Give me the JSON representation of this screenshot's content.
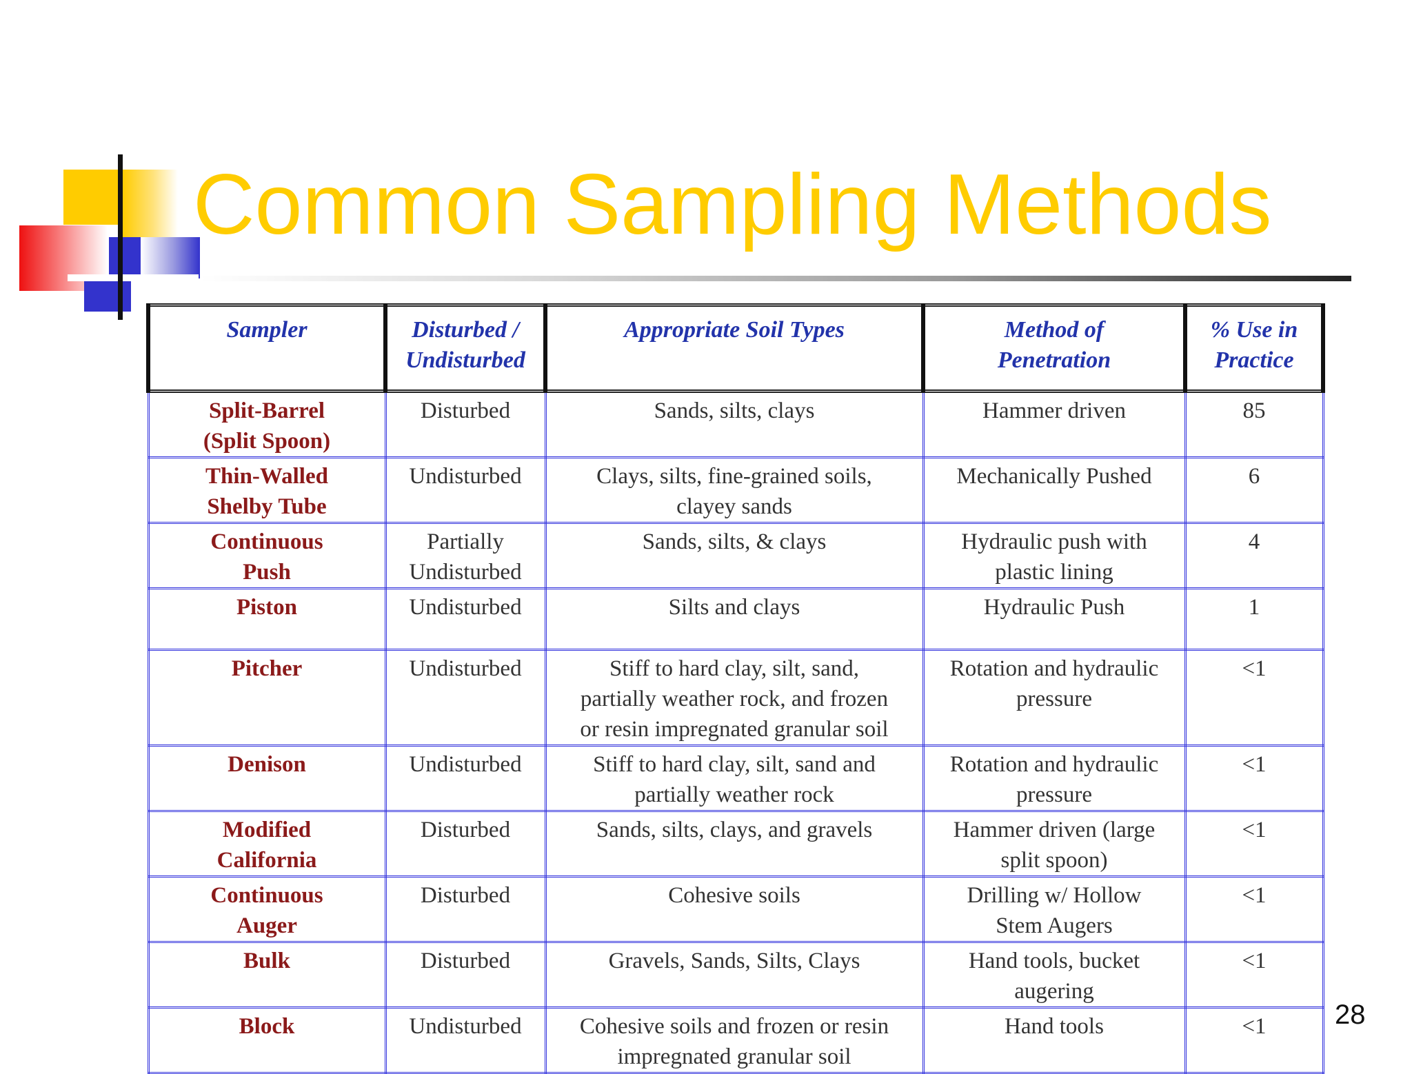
{
  "slide": {
    "title": "Common Sampling Methods",
    "page_number": "28"
  },
  "table": {
    "headers": {
      "sampler": "Sampler",
      "disturbed_line1": "Disturbed /",
      "disturbed_line2": "Undisturbed",
      "soil_types": "Appropriate Soil Types",
      "method_line1": "Method of",
      "method_line2": "Penetration",
      "use_line1": "% Use in",
      "use_line2": "Practice"
    },
    "rows": [
      {
        "sampler_line1": "Split-Barrel",
        "sampler_line2": "(Split Spoon)",
        "disturbed_line1": "Disturbed",
        "disturbed_line2": "",
        "soil_line1": "Sands, silts, clays",
        "soil_line2": "",
        "soil_line3": "",
        "method_line1": "Hammer driven",
        "method_line2": "",
        "use": "85"
      },
      {
        "sampler_line1": "Thin-Walled",
        "sampler_line2": "Shelby Tube",
        "disturbed_line1": "Undisturbed",
        "disturbed_line2": "",
        "soil_line1": "Clays, silts, fine-grained soils,",
        "soil_line2": "clayey sands",
        "soil_line3": "",
        "method_line1": "Mechanically Pushed",
        "method_line2": "",
        "use": "6"
      },
      {
        "sampler_line1": "Continuous",
        "sampler_line2": "Push",
        "disturbed_line1": "Partially",
        "disturbed_line2": "Undisturbed",
        "soil_line1": "Sands, silts, & clays",
        "soil_line2": "",
        "soil_line3": "",
        "method_line1": "Hydraulic push with",
        "method_line2": "plastic lining",
        "use": "4"
      },
      {
        "sampler_line1": "Piston",
        "sampler_line2": "",
        "disturbed_line1": "Undisturbed",
        "disturbed_line2": "",
        "soil_line1": "Silts and clays",
        "soil_line2": "",
        "soil_line3": "",
        "method_line1": "Hydraulic Push",
        "method_line2": "",
        "use": "1"
      },
      {
        "sampler_line1": "Pitcher",
        "sampler_line2": "",
        "disturbed_line1": "Undisturbed",
        "disturbed_line2": "",
        "soil_line1": "Stiff to hard clay, silt, sand,",
        "soil_line2": "partially weather rock, and frozen",
        "soil_line3": "or resin impregnated granular soil",
        "method_line1": "Rotation and hydraulic",
        "method_line2": "pressure",
        "use": "<1"
      },
      {
        "sampler_line1": "Denison",
        "sampler_line2": "",
        "disturbed_line1": "Undisturbed",
        "disturbed_line2": "",
        "soil_line1": "Stiff to hard clay, silt, sand and",
        "soil_line2": "partially weather rock",
        "soil_line3": "",
        "method_line1": "Rotation and hydraulic",
        "method_line2": "pressure",
        "use": "<1"
      },
      {
        "sampler_line1": "Modified",
        "sampler_line2": "California",
        "disturbed_line1": "Disturbed",
        "disturbed_line2": "",
        "soil_line1": "Sands, silts, clays, and gravels",
        "soil_line2": "",
        "soil_line3": "",
        "method_line1": "Hammer driven (large",
        "method_line2": "split spoon)",
        "use": "<1"
      },
      {
        "sampler_line1": "Continuous",
        "sampler_line2": "Auger",
        "disturbed_line1": "Disturbed",
        "disturbed_line2": "",
        "soil_line1": "Cohesive soils",
        "soil_line2": "",
        "soil_line3": "",
        "method_line1": "Drilling w/ Hollow",
        "method_line2": "Stem Augers",
        "use": "<1"
      },
      {
        "sampler_line1": "Bulk",
        "sampler_line2": "",
        "disturbed_line1": "Disturbed",
        "disturbed_line2": "",
        "soil_line1": "Gravels, Sands, Silts, Clays",
        "soil_line2": "",
        "soil_line3": "",
        "method_line1": "Hand tools, bucket",
        "method_line2": "augering",
        "use": "<1"
      },
      {
        "sampler_line1": "Block",
        "sampler_line2": "",
        "disturbed_line1": "Undisturbed",
        "disturbed_line2": "",
        "soil_line1": "Cohesive soils and frozen or resin",
        "soil_line2": "impregnated granular soil",
        "soil_line3": "",
        "method_line1": "Hand tools",
        "method_line2": "",
        "use": "<1"
      }
    ]
  },
  "colors": {
    "title": "#FFCC00",
    "header_text": "#2233AA",
    "sampler_text": "#8B1A1A",
    "grid": "#3333DD"
  }
}
